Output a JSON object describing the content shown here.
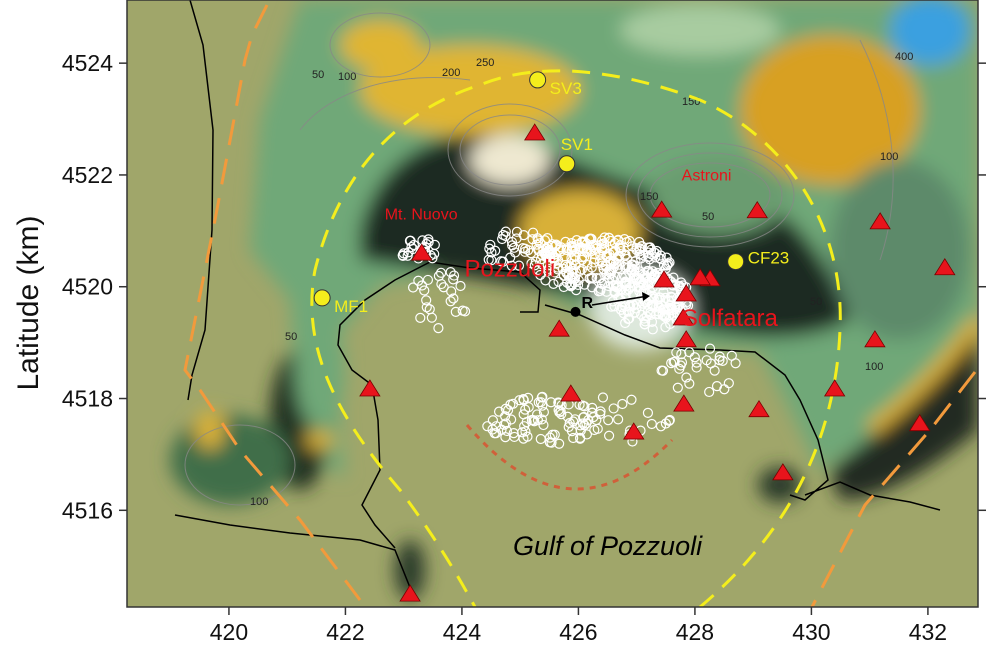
{
  "map": {
    "ylabel": "Latitude (km)",
    "x_ticks": [
      "420",
      "422",
      "424",
      "426",
      "428",
      "430",
      "432"
    ],
    "x_tick_values": [
      420,
      422,
      424,
      426,
      428,
      430,
      432
    ],
    "y_ticks": [
      "4516",
      "4518",
      "4520",
      "4522",
      "4524"
    ],
    "y_tick_values": [
      4516,
      4518,
      4520,
      4522,
      4524
    ],
    "xlim": [
      418.25,
      432.86
    ],
    "ylim": [
      4514.27,
      4525.13
    ],
    "places": [
      {
        "label": "Mt. Nuovo",
        "x": 423.3,
        "y": 4521.2
      },
      {
        "label": "Pozzuoli",
        "x": 425.2,
        "y": 4519.9
      },
      {
        "label": "Astroni",
        "x": 428.2,
        "y": 4521.9
      },
      {
        "label": "Solfatara",
        "x": 428.6,
        "y": 4519.3
      },
      {
        "label": "Gulf of Pozzuoli",
        "x": 426.5,
        "y": 4515.2
      }
    ],
    "stations": [
      {
        "label": "SV3",
        "x": 425.3,
        "y": 4523.7
      },
      {
        "label": "SV1",
        "x": 425.8,
        "y": 4522.2
      },
      {
        "label": "CF23",
        "x": 428.7,
        "y": 4520.45
      },
      {
        "label": "MF1",
        "x": 421.6,
        "y": 4519.8
      }
    ],
    "reference_point": {
      "label": "R",
      "x": 425.95,
      "y": 4519.55
    },
    "triangles": [
      [
        425.25,
        4522.75
      ],
      [
        427.43,
        4521.37
      ],
      [
        429.07,
        4521.36
      ],
      [
        431.18,
        4521.16
      ],
      [
        432.29,
        4520.34
      ],
      [
        427.47,
        4520.12
      ],
      [
        427.85,
        4519.87
      ],
      [
        428.26,
        4520.14
      ],
      [
        428.09,
        4520.16
      ],
      [
        427.8,
        4519.44
      ],
      [
        427.85,
        4519.05
      ],
      [
        425.67,
        4519.24
      ],
      [
        425.87,
        4518.08
      ],
      [
        427.81,
        4517.9
      ],
      [
        426.95,
        4517.4
      ],
      [
        429.1,
        4517.8
      ],
      [
        430.4,
        4518.17
      ],
      [
        431.09,
        4519.05
      ],
      [
        431.86,
        4517.55
      ],
      [
        429.51,
        4516.67
      ],
      [
        422.42,
        4518.17
      ],
      [
        423.11,
        4514.5
      ],
      [
        423.31,
        4520.6
      ]
    ],
    "contour_labels": [
      "50",
      "100",
      "150",
      "200",
      "250",
      "400",
      "100",
      "50",
      "100",
      "50",
      "150",
      "100",
      "50"
    ],
    "colors": {
      "sea": "#a0a66a",
      "station": "#f4ee1c",
      "triangle": "#e8141c",
      "caldera_rim": "#f4ee1c",
      "fault": "#f29a3c",
      "arc": "#d0603a"
    }
  }
}
